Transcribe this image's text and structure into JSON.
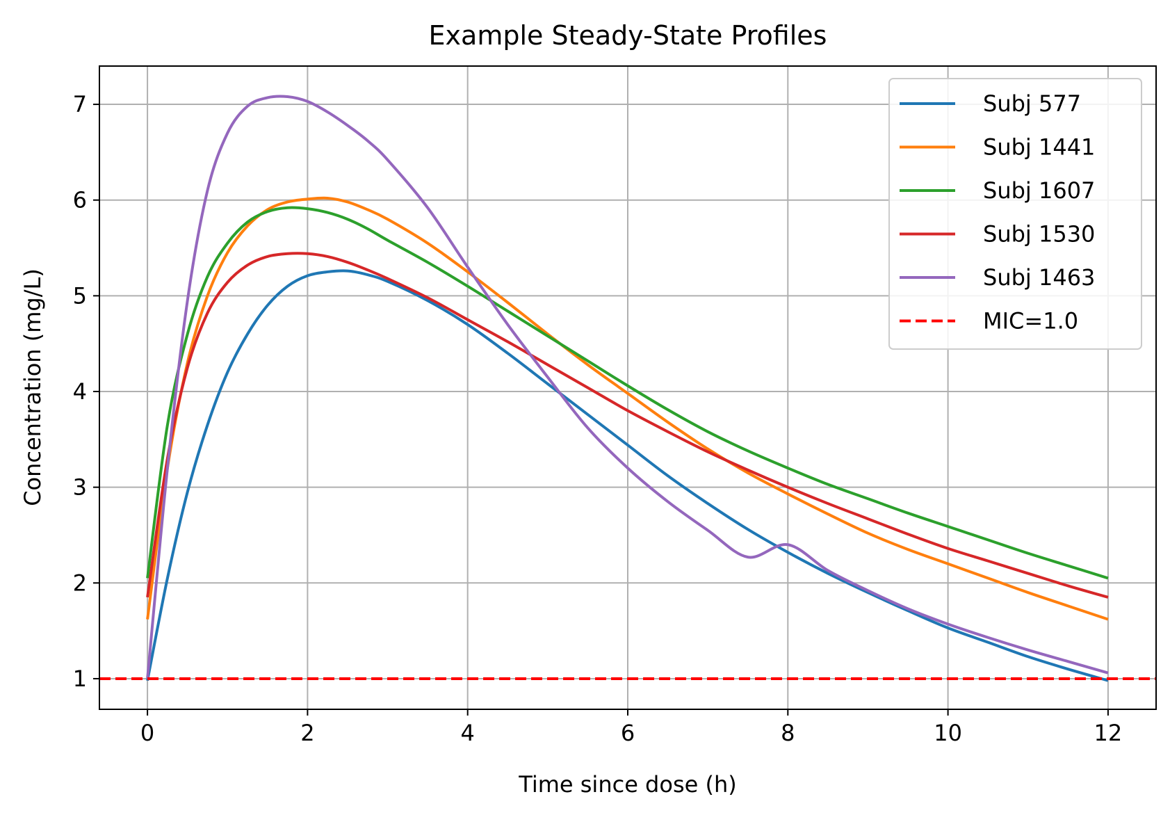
{
  "chart_data": {
    "type": "line",
    "title": "Example Steady-State Profiles",
    "xlabel": "Time since dose (h)",
    "ylabel": "Concentration (mg/L)",
    "xlim": [
      -0.6,
      12.6
    ],
    "ylim": [
      0.68,
      7.4
    ],
    "xticks": [
      0,
      2,
      4,
      6,
      8,
      10,
      12
    ],
    "yticks": [
      1,
      2,
      3,
      4,
      5,
      6,
      7
    ],
    "grid": true,
    "legend_position": "top-right",
    "x": [
      0,
      0.25,
      0.5,
      0.75,
      1,
      1.25,
      1.5,
      1.75,
      2,
      2.25,
      2.5,
      2.75,
      3,
      3.5,
      4,
      4.5,
      5,
      5.5,
      6,
      6.5,
      7,
      7.5,
      8,
      8.5,
      9,
      9.5,
      10,
      10.5,
      11,
      11.5,
      12
    ],
    "series": [
      {
        "name": "Subj 577",
        "color": "#1f77b4",
        "values": [
          0.98,
          2.05,
          2.95,
          3.65,
          4.2,
          4.6,
          4.9,
          5.1,
          5.21,
          5.25,
          5.26,
          5.22,
          5.15,
          4.95,
          4.7,
          4.4,
          4.08,
          3.76,
          3.44,
          3.12,
          2.83,
          2.56,
          2.32,
          2.1,
          1.9,
          1.71,
          1.53,
          1.38,
          1.23,
          1.1,
          0.98
        ]
      },
      {
        "name": "Subj 1441",
        "color": "#ff7f0e",
        "values": [
          1.62,
          3.2,
          4.3,
          5.0,
          5.45,
          5.73,
          5.9,
          5.98,
          6.01,
          6.02,
          5.98,
          5.9,
          5.8,
          5.55,
          5.25,
          4.93,
          4.6,
          4.28,
          3.98,
          3.68,
          3.4,
          3.15,
          2.93,
          2.72,
          2.52,
          2.35,
          2.2,
          2.05,
          1.9,
          1.76,
          1.62
        ]
      },
      {
        "name": "Subj 1607",
        "color": "#2ca02c",
        "values": [
          2.05,
          3.65,
          4.6,
          5.2,
          5.55,
          5.77,
          5.88,
          5.92,
          5.91,
          5.87,
          5.8,
          5.7,
          5.58,
          5.35,
          5.1,
          4.84,
          4.58,
          4.32,
          4.06,
          3.81,
          3.58,
          3.38,
          3.2,
          3.03,
          2.88,
          2.73,
          2.59,
          2.45,
          2.31,
          2.18,
          2.05
        ]
      },
      {
        "name": "Subj 1530",
        "color": "#d62728",
        "values": [
          1.85,
          3.3,
          4.25,
          4.82,
          5.14,
          5.32,
          5.41,
          5.44,
          5.44,
          5.41,
          5.35,
          5.27,
          5.18,
          4.98,
          4.75,
          4.52,
          4.28,
          4.04,
          3.8,
          3.58,
          3.37,
          3.18,
          3.0,
          2.83,
          2.67,
          2.51,
          2.36,
          2.23,
          2.1,
          1.97,
          1.85
        ]
      },
      {
        "name": "Subj 1463",
        "color": "#9467bd",
        "values": [
          1.0,
          3.2,
          4.95,
          6.1,
          6.7,
          6.98,
          7.07,
          7.08,
          7.03,
          6.92,
          6.78,
          6.62,
          6.42,
          5.92,
          5.3,
          4.7,
          4.15,
          3.62,
          3.2,
          2.85,
          2.55,
          2.27,
          2.4,
          2.13,
          1.92,
          1.73,
          1.57,
          1.43,
          1.3,
          1.18,
          1.06
        ]
      }
    ],
    "reference_lines": [
      {
        "name": "MIC=1.0",
        "y": 1.0,
        "color": "#ff0000",
        "style": "dashed"
      }
    ]
  }
}
